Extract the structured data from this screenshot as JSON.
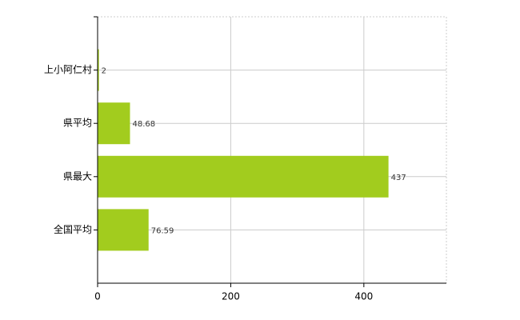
{
  "chart_data": {
    "type": "bar",
    "orientation": "horizontal",
    "categories": [
      "上小阿仁村",
      "県平均",
      "県最大",
      "全国平均"
    ],
    "values": [
      2,
      48.68,
      437,
      76.59
    ],
    "color": "#a2cc1e",
    "xlim": [
      0,
      524
    ],
    "xticks": [
      0,
      200,
      400
    ],
    "grid": true
  }
}
